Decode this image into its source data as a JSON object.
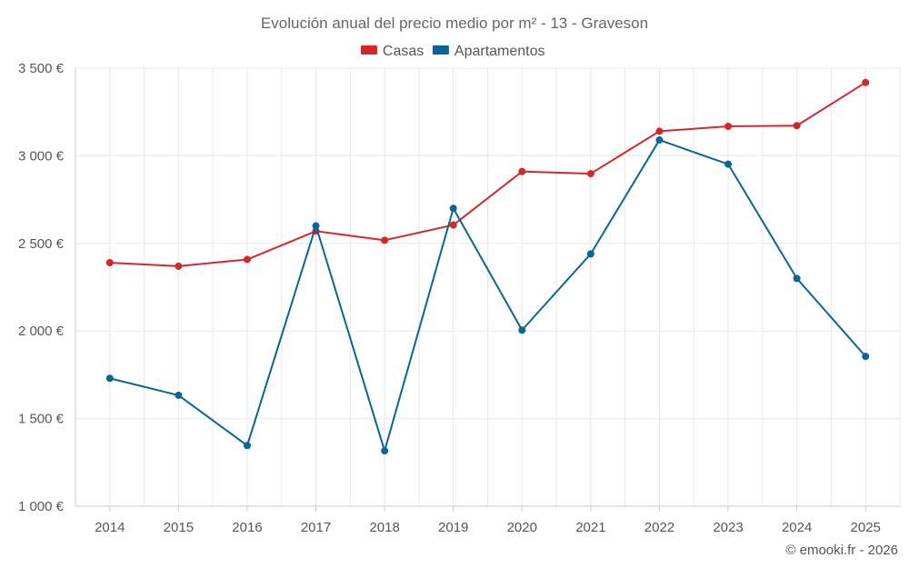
{
  "chart_data": {
    "type": "line",
    "title": "Evolución anual del precio medio por m² - 13 - Graveson",
    "categories": [
      "2014",
      "2015",
      "2016",
      "2017",
      "2018",
      "2019",
      "2020",
      "2021",
      "2022",
      "2023",
      "2024",
      "2025"
    ],
    "series": [
      {
        "name": "Casas",
        "color": "#d62728",
        "values": [
          2390,
          2370,
          2408,
          2570,
          2518,
          2605,
          2910,
          2898,
          3140,
          3168,
          3172,
          3418
        ]
      },
      {
        "name": "Apartamentos",
        "color": "#0a6496",
        "values": [
          1730,
          1633,
          1346,
          2600,
          1316,
          2700,
          2005,
          2440,
          3090,
          2952,
          2300,
          1855
        ]
      }
    ],
    "ylim": [
      1000,
      3500
    ],
    "yticks": [
      1000,
      1500,
      2000,
      2500,
      3000,
      3500
    ],
    "ytick_labels": [
      "1 000 €",
      "1 500 €",
      "2 000 €",
      "2 500 €",
      "3 000 €",
      "3 500 €"
    ],
    "xlabel": "",
    "ylabel": "",
    "grid": true,
    "legend_position": "top-center"
  },
  "credit": "© emooki.fr - 2026"
}
